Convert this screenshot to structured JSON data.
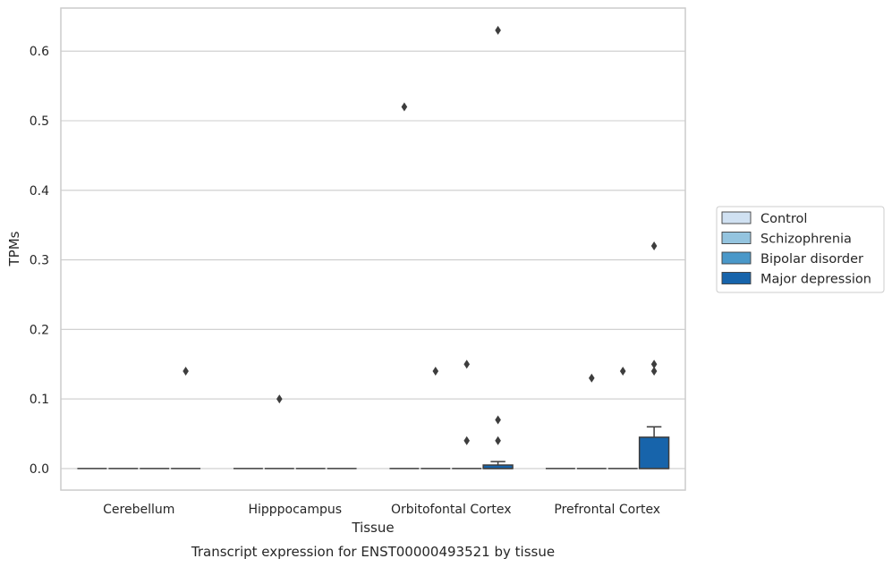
{
  "chart_data": {
    "type": "box",
    "title": "",
    "caption": "Transcript expression for ENST00000493521 by tissue",
    "xlabel": "Tissue",
    "ylabel": "TPMs",
    "ylim": [
      -0.031,
      0.662
    ],
    "yticks": [
      0.0,
      0.1,
      0.2,
      0.3,
      0.4,
      0.5,
      0.6
    ],
    "ytick_labels": [
      "0.0",
      "0.1",
      "0.2",
      "0.3",
      "0.4",
      "0.5",
      "0.6"
    ],
    "grid": "horizontal",
    "legend_position": "right",
    "categories": [
      "Cerebellum",
      "Hipppocampus",
      "Orbitofontal Cortex",
      "Prefrontal Cortex"
    ],
    "series": [
      {
        "name": "Control",
        "color": "#d0e1f2",
        "boxes": [
          {
            "q1": 0,
            "median": 0,
            "q3": 0,
            "whisker_low": 0,
            "whisker_high": 0,
            "outliers": []
          },
          {
            "q1": 0,
            "median": 0,
            "q3": 0,
            "whisker_low": 0,
            "whisker_high": 0,
            "outliers": []
          },
          {
            "q1": 0,
            "median": 0,
            "q3": 0,
            "whisker_low": 0,
            "whisker_high": 0,
            "outliers": [
              0.52
            ]
          },
          {
            "q1": 0,
            "median": 0,
            "q3": 0,
            "whisker_low": 0,
            "whisker_high": 0,
            "outliers": []
          }
        ]
      },
      {
        "name": "Schizophrenia",
        "color": "#94c4df",
        "boxes": [
          {
            "q1": 0,
            "median": 0,
            "q3": 0,
            "whisker_low": 0,
            "whisker_high": 0,
            "outliers": []
          },
          {
            "q1": 0,
            "median": 0,
            "q3": 0,
            "whisker_low": 0,
            "whisker_high": 0,
            "outliers": [
              0.1
            ]
          },
          {
            "q1": 0,
            "median": 0,
            "q3": 0,
            "whisker_low": 0,
            "whisker_high": 0,
            "outliers": [
              0.14
            ]
          },
          {
            "q1": 0,
            "median": 0,
            "q3": 0,
            "whisker_low": 0,
            "whisker_high": 0,
            "outliers": [
              0.13
            ]
          }
        ]
      },
      {
        "name": "Bipolar disorder",
        "color": "#4a98c9",
        "boxes": [
          {
            "q1": 0,
            "median": 0,
            "q3": 0,
            "whisker_low": 0,
            "whisker_high": 0,
            "outliers": []
          },
          {
            "q1": 0,
            "median": 0,
            "q3": 0,
            "whisker_low": 0,
            "whisker_high": 0,
            "outliers": []
          },
          {
            "q1": 0,
            "median": 0,
            "q3": 0,
            "whisker_low": 0,
            "whisker_high": 0,
            "outliers": [
              0.04,
              0.15
            ]
          },
          {
            "q1": 0,
            "median": 0,
            "q3": 0,
            "whisker_low": 0,
            "whisker_high": 0,
            "outliers": [
              0.14
            ]
          }
        ]
      },
      {
        "name": "Major depression",
        "color": "#1764ab",
        "boxes": [
          {
            "q1": 0,
            "median": 0,
            "q3": 0,
            "whisker_low": 0,
            "whisker_high": 0,
            "outliers": [
              0.14
            ]
          },
          {
            "q1": 0,
            "median": 0,
            "q3": 0,
            "whisker_low": 0,
            "whisker_high": 0,
            "outliers": []
          },
          {
            "q1": 0,
            "median": 0,
            "q3": 0.005,
            "whisker_low": 0,
            "whisker_high": 0.01,
            "outliers": [
              0.04,
              0.07,
              0.63
            ]
          },
          {
            "q1": 0,
            "median": 0,
            "q3": 0.045,
            "whisker_low": 0,
            "whisker_high": 0.06,
            "outliers": [
              0.14,
              0.15,
              0.32
            ]
          }
        ]
      }
    ],
    "colors": {
      "grid": "#cccccc",
      "frame": "#cccccc",
      "edge": "#3d3d3d",
      "outlier": "#3d3d3d",
      "text": "#262626"
    }
  }
}
